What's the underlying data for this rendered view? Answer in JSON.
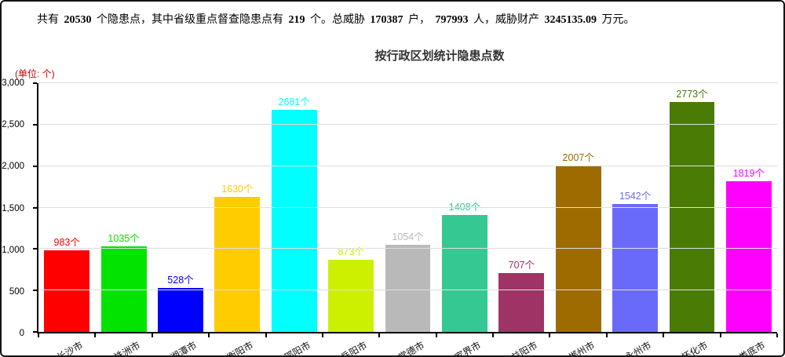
{
  "summary": {
    "segments": [
      {
        "text": "共有",
        "bold": false
      },
      {
        "text": "20530",
        "bold": true
      },
      {
        "text": "个隐患点，其中省级重点督查隐患点有",
        "bold": false
      },
      {
        "text": "219",
        "bold": true
      },
      {
        "text": "个。总威胁",
        "bold": false
      },
      {
        "text": "170387",
        "bold": true
      },
      {
        "text": "户，",
        "bold": false
      },
      {
        "text": "797993",
        "bold": true
      },
      {
        "text": "人，威胁财产",
        "bold": false
      },
      {
        "text": "3245135.09",
        "bold": true
      },
      {
        "text": "万元。",
        "bold": false
      }
    ]
  },
  "chart": {
    "title": "按行政区划统计隐患点数",
    "unit_label": "(单位: 个)"
  },
  "chart_data": {
    "type": "bar",
    "title": "按行政区划统计隐患点数",
    "xlabel": "",
    "ylabel": "(单位: 个)",
    "categories": [
      "长沙市",
      "株洲市",
      "湘潭市",
      "衡阳市",
      "邵阳市",
      "岳阳市",
      "常德市",
      "张家界市",
      "益阳市",
      "郴州市",
      "永州市",
      "怀化市",
      "娄底市"
    ],
    "values": [
      983,
      1035,
      528,
      1630,
      2681,
      873,
      1054,
      1408,
      707,
      2007,
      1542,
      2773,
      1819
    ],
    "colors": [
      "#ff0000",
      "#00e400",
      "#0000ff",
      "#ffcc00",
      "#00ffff",
      "#ccf000",
      "#b9b9b9",
      "#36c893",
      "#9e3366",
      "#9e6b00",
      "#6a6afa",
      "#4a7b05",
      "#ff00ff"
    ],
    "value_suffix": "个",
    "ylim": [
      0,
      3000
    ],
    "ytick_step": 500,
    "grid": true,
    "legend": false,
    "axis_color": "#000000",
    "gridline_color": "#dedede",
    "label_rotation_deg": -30
  }
}
